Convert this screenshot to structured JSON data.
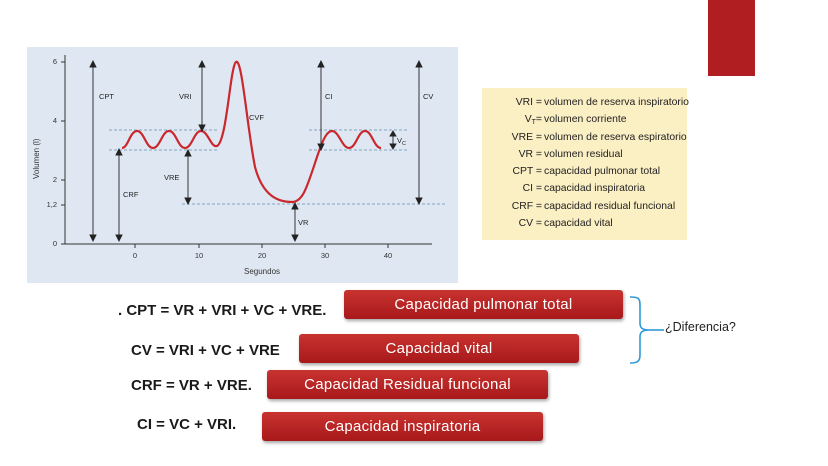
{
  "chart": {
    "y_ticks": [
      "0",
      "1,2",
      "2",
      "4",
      "6"
    ],
    "x_ticks": [
      "0",
      "10",
      "20",
      "30",
      "40"
    ],
    "x_label": "Segundos",
    "y_label": "Volumen (l)",
    "labels": {
      "cpt": "CPT",
      "vri": "VRI",
      "ci": "CI",
      "cv": "CV",
      "cvf": "CVF",
      "vre": "VRE",
      "crf": "CRF",
      "vr": "VR",
      "vc": "V",
      "vc_sub": "C"
    }
  },
  "legend": [
    {
      "abbr": "VRI =",
      "def": "volumen de reserva inspiratorio"
    },
    {
      "abbr": "V",
      "sub": "T",
      "eq": " =",
      "def": "volumen corriente"
    },
    {
      "abbr": "VRE =",
      "def": "volumen de reserva espiratorio"
    },
    {
      "abbr": "VR =",
      "def": "volumen residual"
    },
    {
      "abbr": "CPT =",
      "def": "capacidad pulmonar total"
    },
    {
      "abbr": "CI =",
      "def": "capacidad inspiratoria"
    },
    {
      "abbr": "CRF =",
      "def": "capacidad residual funcional"
    },
    {
      "abbr": "CV =",
      "def": "capacidad vital"
    }
  ],
  "formulas": {
    "cpt": ". CPT = VR + VRI + VC + VRE.",
    "cv": "CV = VRI + VC + VRE",
    "crf": "CRF = VR + VRE.",
    "ci": "CI = VC + VRI."
  },
  "boxes": {
    "cpt": "Capacidad pulmonar total",
    "cv": "Capacidad vital",
    "crf": "Capacidad Residual funcional",
    "ci": "Capacidad inspiratoria"
  },
  "difference": "¿Diferencia?",
  "colors": {
    "accent": "#b11e22",
    "panel": "#dfe8f2",
    "legend_bg": "#fbefc4",
    "bracket": "#2f9bd6"
  }
}
